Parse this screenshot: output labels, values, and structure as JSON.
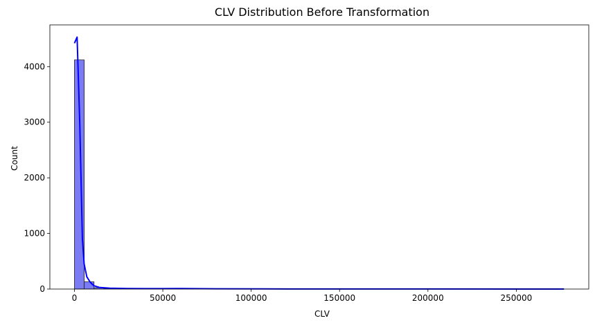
{
  "chart_data": {
    "type": "bar",
    "title": "CLV Distribution Before Transformation",
    "xlabel": "CLV",
    "ylabel": "Count",
    "xlim": [
      -13900,
      291000
    ],
    "ylim": [
      0,
      4750
    ],
    "xticks": [
      0,
      50000,
      100000,
      150000,
      200000,
      250000
    ],
    "xtick_labels": [
      "0",
      "50000",
      "100000",
      "150000",
      "200000",
      "250000"
    ],
    "yticks": [
      0,
      1000,
      2000,
      3000,
      4000
    ],
    "ytick_labels": [
      "0",
      "1000",
      "2000",
      "3000",
      "4000"
    ],
    "bin_width": 5540,
    "bins": [
      {
        "x0": 0,
        "x1": 5540,
        "count": 4120
      },
      {
        "x0": 5540,
        "x1": 11080,
        "count": 130
      },
      {
        "x0": 11080,
        "x1": 16620,
        "count": 25
      },
      {
        "x0": 16620,
        "x1": 22160,
        "count": 10
      },
      {
        "x0": 22160,
        "x1": 27700,
        "count": 5
      },
      {
        "x0": 27700,
        "x1": 33240,
        "count": 4
      },
      {
        "x0": 33240,
        "x1": 38780,
        "count": 3
      },
      {
        "x0": 38780,
        "x1": 44320,
        "count": 2
      },
      {
        "x0": 44320,
        "x1": 49860,
        "count": 1
      },
      {
        "x0": 49860,
        "x1": 55400,
        "count": 2
      },
      {
        "x0": 55400,
        "x1": 60940,
        "count": 3
      },
      {
        "x0": 60940,
        "x1": 66480,
        "count": 1
      },
      {
        "x0": 66480,
        "x1": 72020,
        "count": 1
      },
      {
        "x0": 72020,
        "x1": 77560,
        "count": 1
      },
      {
        "x0": 77560,
        "x1": 83100,
        "count": 1
      }
    ],
    "kde": {
      "x": [
        0,
        1500,
        3000,
        4500,
        5500,
        7000,
        9000,
        11000,
        14000,
        20000,
        30000,
        40000,
        50000,
        60000,
        80000,
        120000,
        200000,
        277000
      ],
      "y": [
        4420,
        4530,
        3000,
        900,
        450,
        220,
        120,
        60,
        30,
        15,
        10,
        8,
        8,
        10,
        4,
        2,
        1,
        0
      ]
    },
    "bar_color": "#7b7bf3",
    "bar_edge_color": "#222222",
    "kde_color": "#0000ff",
    "grid": false
  }
}
